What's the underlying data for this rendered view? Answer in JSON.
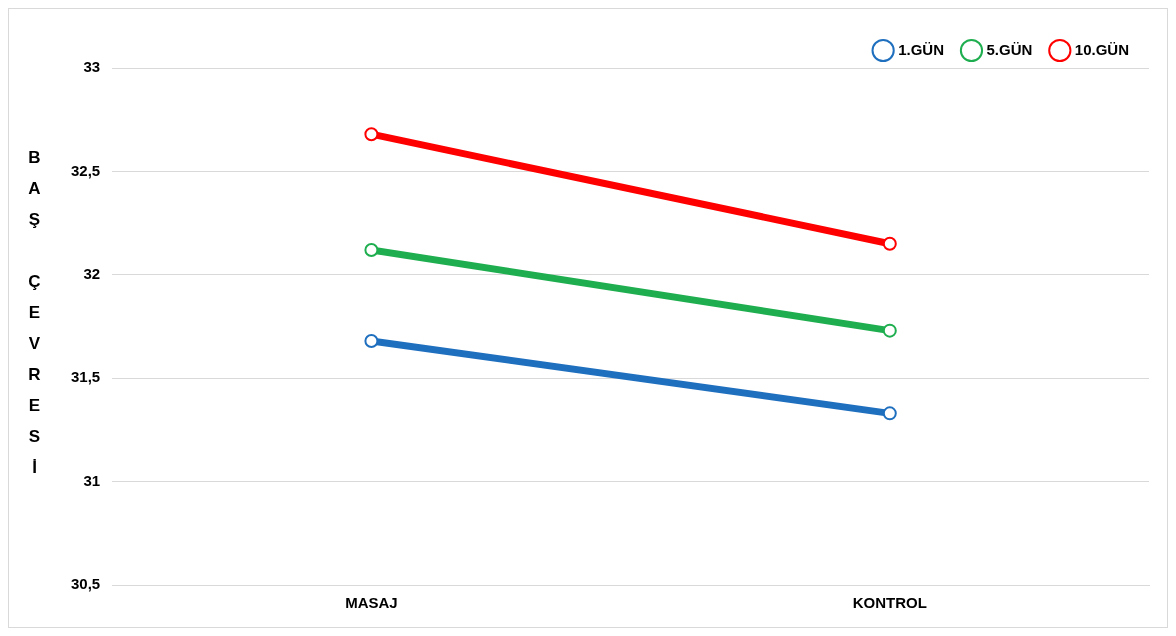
{
  "chart_data": {
    "type": "line",
    "ylabel": "BAŞ ÇEVRESİ",
    "categories": [
      "MASAJ",
      "KONTROL"
    ],
    "series": [
      {
        "name": "1.GÜN",
        "color": "#1f6fbf",
        "values": [
          31.68,
          31.33
        ]
      },
      {
        "name": "5.GÜN",
        "color": "#1fae4f",
        "values": [
          32.12,
          31.73
        ]
      },
      {
        "name": "10.GÜN",
        "color": "#ff0000",
        "values": [
          32.68,
          32.15
        ]
      }
    ],
    "ylim": [
      30.5,
      33
    ],
    "yticks": [
      {
        "value": 30.5,
        "label": "30,5"
      },
      {
        "value": 31,
        "label": "31"
      },
      {
        "value": 31.5,
        "label": "31,5"
      },
      {
        "value": 32,
        "label": "32"
      },
      {
        "value": 32.5,
        "label": "32,5"
      },
      {
        "value": 33,
        "label": "33"
      }
    ],
    "grid": "y",
    "legend": "top right",
    "marker": "circle",
    "line_style": "solid"
  }
}
